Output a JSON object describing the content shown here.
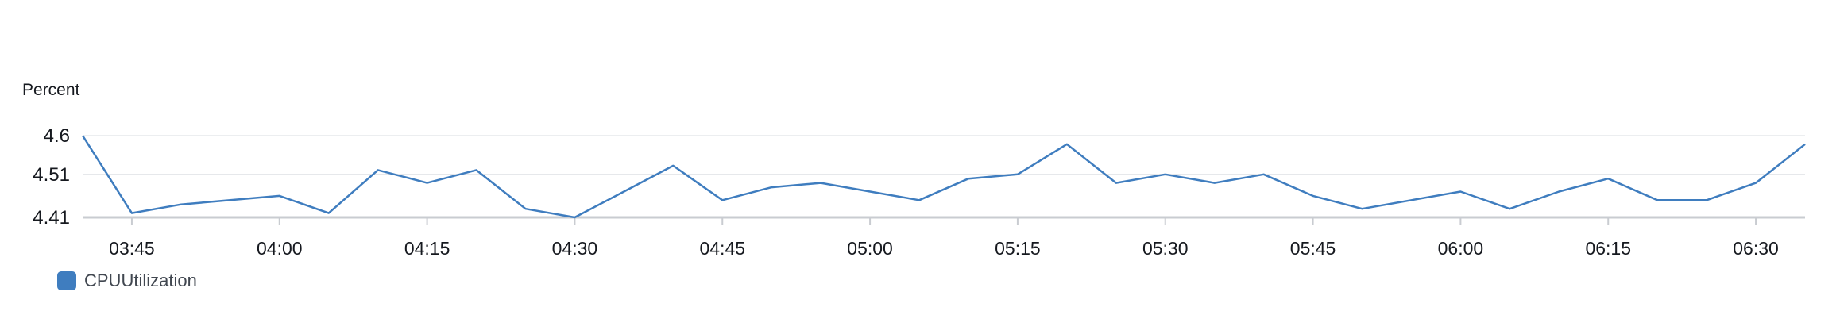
{
  "chart_data": {
    "type": "line",
    "ylabel": "Percent",
    "y_ticks": [
      "4.6",
      "4.51",
      "4.41"
    ],
    "ylim": [
      4.41,
      4.6
    ],
    "x_ticks": [
      "03:45",
      "04:00",
      "04:15",
      "04:30",
      "04:45",
      "05:00",
      "05:15",
      "05:30",
      "05:45",
      "06:00",
      "06:15",
      "06:30"
    ],
    "x_unit": "minutes",
    "grid": true,
    "legend_position": "bottom-left",
    "series": [
      {
        "name": "CPUUtilization",
        "color": "#3f7dbf",
        "x": [
          "03:40",
          "03:45",
          "03:50",
          "03:55",
          "04:00",
          "04:05",
          "04:10",
          "04:15",
          "04:20",
          "04:25",
          "04:30",
          "04:35",
          "04:40",
          "04:45",
          "04:50",
          "04:55",
          "05:00",
          "05:05",
          "05:10",
          "05:15",
          "05:20",
          "05:25",
          "05:30",
          "05:35",
          "05:40",
          "05:45",
          "05:50",
          "05:55",
          "06:00",
          "06:05",
          "06:10",
          "06:15",
          "06:20",
          "06:25",
          "06:30",
          "06:35"
        ],
        "values": [
          4.6,
          4.42,
          4.44,
          4.45,
          4.46,
          4.42,
          4.52,
          4.49,
          4.52,
          4.43,
          4.41,
          4.47,
          4.53,
          4.45,
          4.48,
          4.49,
          4.47,
          4.45,
          4.5,
          4.51,
          4.58,
          4.49,
          4.51,
          4.49,
          4.51,
          4.46,
          4.43,
          4.45,
          4.47,
          4.43,
          4.47,
          4.5,
          4.45,
          4.45,
          4.49,
          4.58
        ]
      }
    ]
  }
}
